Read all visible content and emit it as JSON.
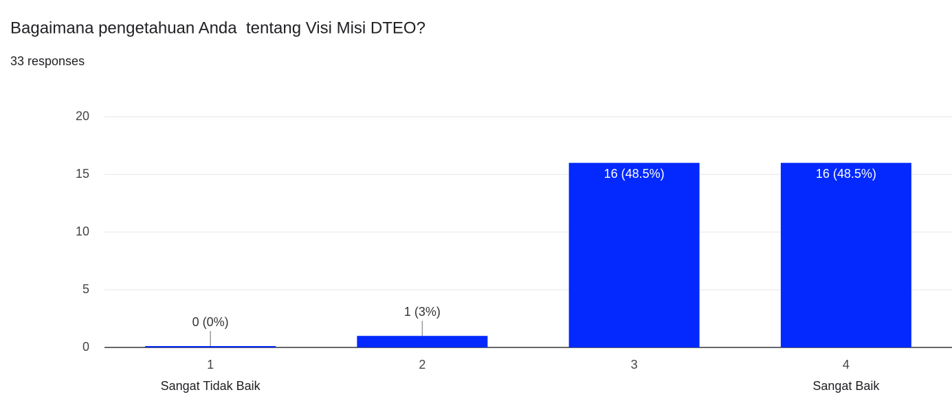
{
  "chart_data": {
    "type": "bar",
    "title": "Bagaimana pengetahuan Anda  tentang Visi Misi DTEO?",
    "subtitle": "33 responses",
    "categories": [
      "1",
      "2",
      "3",
      "4"
    ],
    "scale_labels": [
      "Sangat Tidak Baik",
      null,
      null,
      "Sangat Baik"
    ],
    "values": [
      0,
      1,
      16,
      16
    ],
    "value_labels": [
      "0 (0%)",
      "1 (3%)",
      "16 (48.5%)",
      "16 (48.5%)"
    ],
    "color": "#0329fe",
    "ylim": [
      0,
      20
    ],
    "yticks": [
      0,
      5,
      10,
      15,
      20
    ],
    "grid": true
  }
}
